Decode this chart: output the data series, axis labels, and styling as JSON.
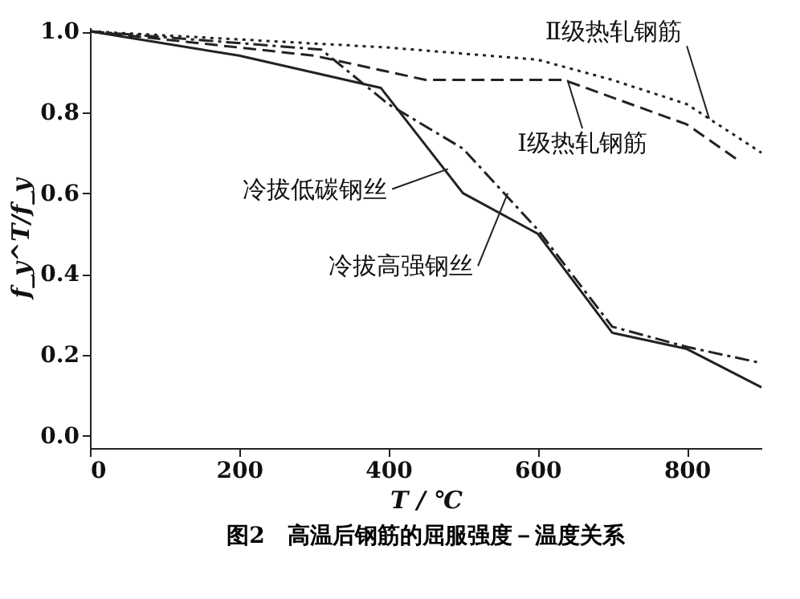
{
  "chart_data": {
    "type": "line",
    "title": "图2　高温后钢筋的屈服强度－温度关系",
    "xlabel": "T / ℃",
    "ylabel": "f_y^T/f_y",
    "xlim": [
      0,
      900
    ],
    "xticks": [
      0,
      200,
      400,
      600,
      800
    ],
    "ylim": [
      -0.03,
      1.01
    ],
    "yticks": [
      {
        "value": 0,
        "label": "0.0"
      },
      0.2,
      0.4,
      0.6,
      0.8,
      {
        "value": 1,
        "label": "1.0"
      }
    ],
    "grid": false,
    "marker": "none",
    "series": [
      {
        "color": "#222222",
        "line_style": "dotted",
        "x": [
          0,
          200,
          400,
          600,
          700,
          800,
          900
        ],
        "values": [
          1.0,
          0.98,
          0.96,
          0.93,
          0.88,
          0.82,
          0.7
        ]
      },
      {
        "color": "#222222",
        "line_style": "dashed",
        "x": [
          0,
          300,
          450,
          635,
          800,
          870
        ],
        "values": [
          1.0,
          0.94,
          0.88,
          0.88,
          0.77,
          0.68
        ]
      },
      {
        "color": "#222222",
        "line_style": "solid",
        "x": [
          0,
          200,
          390,
          500,
          600,
          700,
          800,
          900
        ],
        "values": [
          1.0,
          0.94,
          0.86,
          0.6,
          0.5,
          0.255,
          0.215,
          0.12
        ]
      },
      {
        "color": "#222222",
        "line_style": "dashdot",
        "x": [
          0,
          310,
          400,
          500,
          600,
          700,
          800,
          900
        ],
        "values": [
          1.0,
          0.955,
          0.82,
          0.71,
          0.51,
          0.27,
          0.22,
          0.18
        ]
      }
    ],
    "annotations": [
      {
        "text": "Ⅱ级热轧钢筋",
        "x": 830,
        "y": 0.784
      },
      {
        "text": "Ⅰ级热轧钢筋",
        "x": 640,
        "y": 0.88
      },
      {
        "text": "冷拔低碳钢丝",
        "x": 480,
        "y": 0.66
      },
      {
        "text": "冷拔高强钢丝",
        "x": 560,
        "y": 0.6
      }
    ]
  }
}
